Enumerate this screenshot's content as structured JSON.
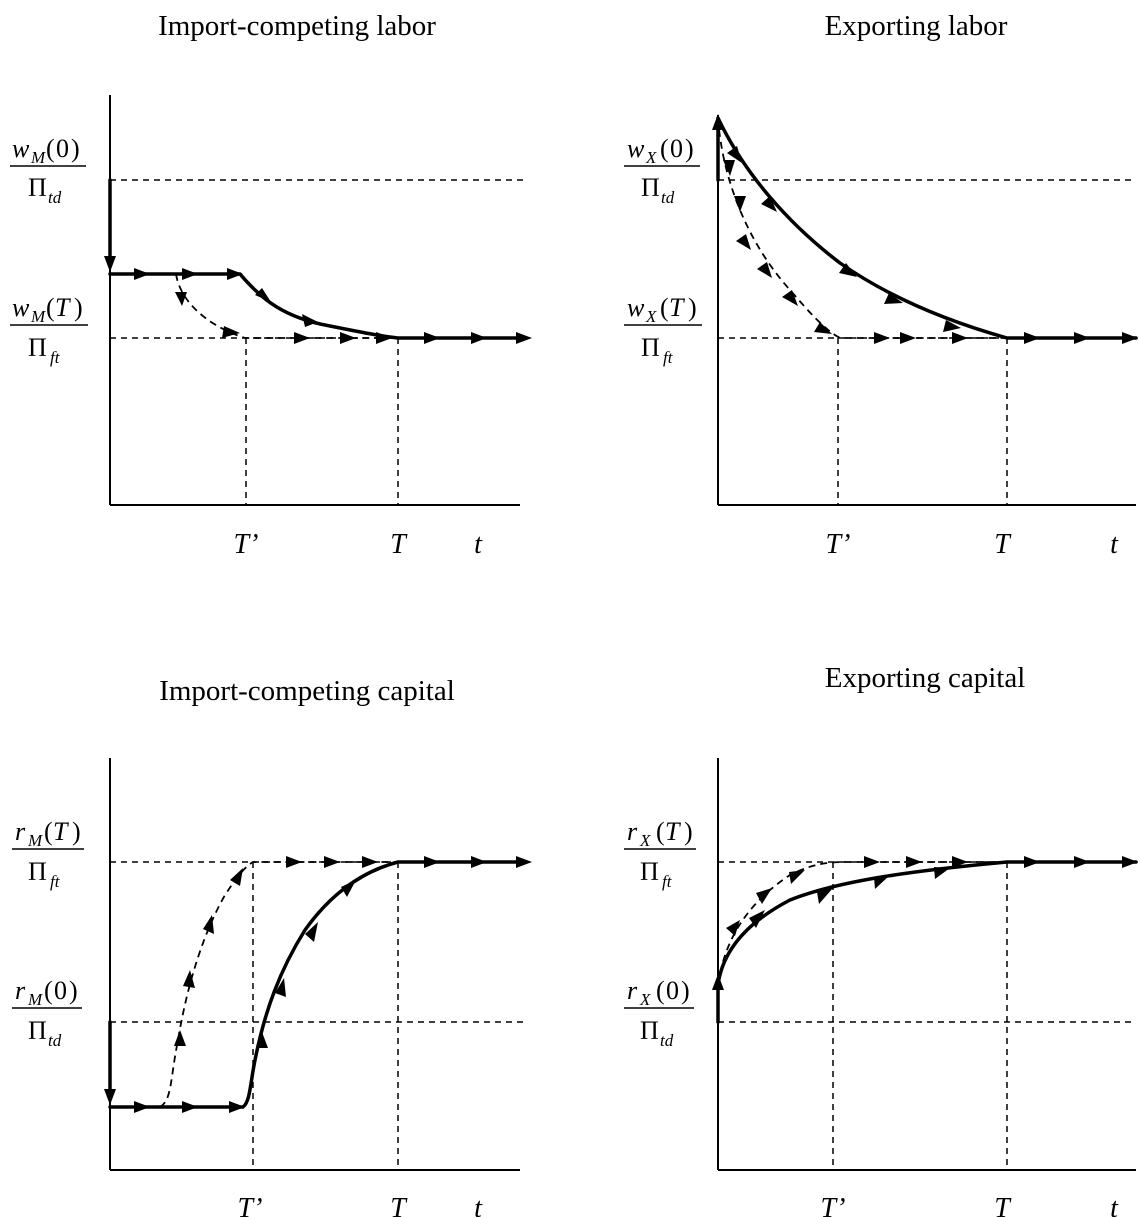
{
  "panels": [
    {
      "id": "import-labor",
      "title": "Import-competing labor",
      "y_labels": [
        {
          "var": "w",
          "sub": "M",
          "arg": "0",
          "den_sub": "td"
        },
        {
          "var": "w",
          "sub": "M",
          "arg": "T",
          "den_sub": "ft"
        }
      ],
      "x_ticks": [
        "T’",
        "T",
        "t"
      ]
    },
    {
      "id": "export-labor",
      "title": "Exporting labor",
      "y_labels": [
        {
          "var": "w",
          "sub": "X",
          "arg": "0",
          "den_sub": "td"
        },
        {
          "var": "w",
          "sub": "X",
          "arg": "T",
          "den_sub": "ft"
        }
      ],
      "x_ticks": [
        "T’",
        "T",
        "t"
      ]
    },
    {
      "id": "import-capital",
      "title": "Import-competing capital",
      "y_labels": [
        {
          "var": "r",
          "sub": "M",
          "arg": "T",
          "den_sub": "ft"
        },
        {
          "var": "r",
          "sub": "M",
          "arg": "0",
          "den_sub": "td"
        }
      ],
      "x_ticks": [
        "T’",
        "T",
        "t"
      ]
    },
    {
      "id": "export-capital",
      "title": "Exporting capital",
      "y_labels": [
        {
          "var": "r",
          "sub": "X",
          "arg": "T",
          "den_sub": "ft"
        },
        {
          "var": "r",
          "sub": "X",
          "arg": "0",
          "den_sub": "td"
        }
      ],
      "x_ticks": [
        "T’",
        "T",
        "t"
      ]
    }
  ],
  "symbols": {
    "pi": "Π",
    "open_paren": "(",
    "close_paren": ")"
  },
  "colors": {
    "ink": "#000000",
    "background": "#ffffff"
  }
}
